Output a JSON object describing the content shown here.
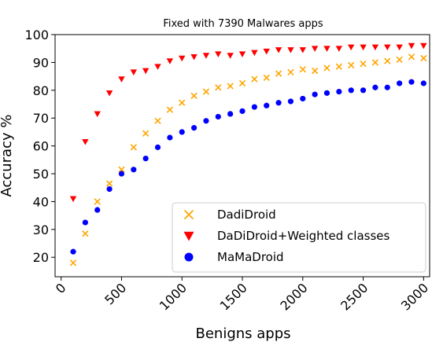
{
  "chart_data": {
    "type": "scatter",
    "title": "Fixed with 7390 Malwares apps",
    "xlabel": "Benigns apps",
    "ylabel": "Accuracy %",
    "xlim": [
      -50,
      3050
    ],
    "ylim": [
      13,
      100
    ],
    "xticks": [
      "0",
      "500",
      "1000",
      "1500",
      "2000",
      "2500",
      "3000"
    ],
    "yticks": [
      "20",
      "30",
      "40",
      "50",
      "60",
      "70",
      "80",
      "90",
      "100"
    ],
    "grid": false,
    "legend_position": "lower-right",
    "x": [
      100,
      200,
      300,
      400,
      500,
      600,
      700,
      800,
      900,
      1000,
      1100,
      1200,
      1300,
      1400,
      1500,
      1600,
      1700,
      1800,
      1900,
      2000,
      2100,
      2200,
      2300,
      2400,
      2500,
      2600,
      2700,
      2800,
      2900,
      3000
    ],
    "series": [
      {
        "name": "DadiDroid",
        "marker": "x",
        "color": "#ffa500",
        "values": [
          18.0,
          28.5,
          40.0,
          46.5,
          51.5,
          59.5,
          64.5,
          69.0,
          73.0,
          75.5,
          78.0,
          79.5,
          81.0,
          81.5,
          82.5,
          84.0,
          84.5,
          86.0,
          86.5,
          87.5,
          87.0,
          88.0,
          88.5,
          89.0,
          89.5,
          90.0,
          90.5,
          91.0,
          92.0,
          91.5
        ]
      },
      {
        "name": "DaDiDroid+Weighted classes",
        "marker": "triangle-down",
        "color": "#ff0000",
        "values": [
          41.0,
          61.5,
          71.5,
          79.0,
          84.0,
          86.5,
          87.0,
          88.5,
          90.5,
          91.5,
          92.0,
          92.5,
          93.0,
          92.5,
          93.0,
          93.5,
          94.0,
          94.5,
          94.5,
          94.5,
          95.0,
          95.0,
          95.0,
          95.5,
          95.5,
          95.5,
          95.5,
          95.5,
          96.0,
          96.0
        ]
      },
      {
        "name": "MaMaDroid",
        "marker": "circle",
        "color": "#0000ff",
        "values": [
          22.0,
          32.5,
          37.0,
          44.5,
          50.0,
          51.5,
          55.5,
          59.5,
          63.0,
          65.0,
          66.5,
          69.0,
          70.5,
          71.5,
          72.5,
          74.0,
          74.5,
          75.5,
          76.0,
          77.0,
          78.5,
          79.0,
          79.5,
          80.0,
          80.0,
          81.0,
          81.0,
          82.5,
          83.0,
          82.5
        ]
      }
    ]
  }
}
